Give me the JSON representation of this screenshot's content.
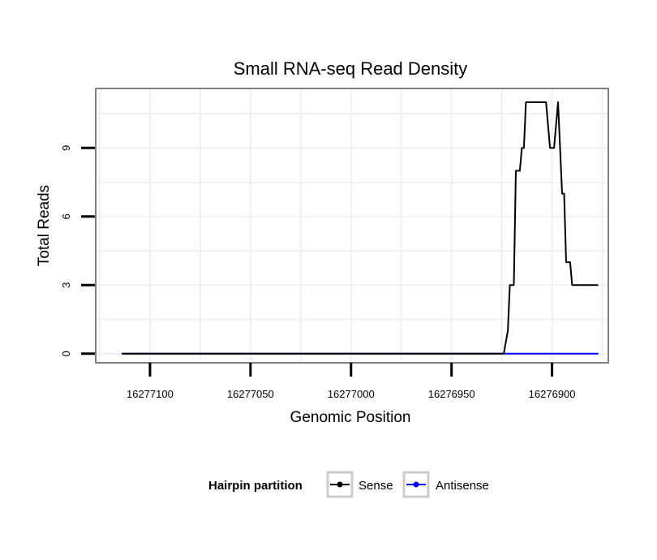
{
  "chart_data": {
    "type": "line",
    "title": "Small RNA-seq Read Density",
    "xlabel": "Genomic Position",
    "ylabel": "Total Reads",
    "x_reversed": true,
    "xlim": [
      16277127,
      16276872
    ],
    "ylim": [
      -0.4,
      11.6
    ],
    "xticks": [
      16277100,
      16277050,
      16277000,
      16276950,
      16276900
    ],
    "xtick_labels": [
      "16277100",
      "16277050",
      "16277000",
      "16276950",
      "16276900"
    ],
    "yticks": [
      0,
      3,
      6,
      9
    ],
    "ytick_labels": [
      "0",
      "3",
      "6",
      "9"
    ],
    "grid": true,
    "legend": {
      "title": "Hairpin partition",
      "placement": "bottom",
      "entries": [
        "Sense",
        "Antisense"
      ]
    },
    "series": [
      {
        "name": "Sense",
        "color": "#000000",
        "x": [
          16277114,
          16276924,
          16276922,
          16276921,
          16276919,
          16276918,
          16276916,
          16276915,
          16276914,
          16276913,
          16276910,
          16276909,
          16276908,
          16276906,
          16276904,
          16276904,
          16276903,
          16276901,
          16276899,
          16276897,
          16276895,
          16276894,
          16276893,
          16276891,
          16276890,
          16276888,
          16276877
        ],
        "values": [
          0,
          0,
          1,
          3,
          3,
          8,
          8,
          9,
          9,
          11,
          11,
          11,
          11,
          11,
          11,
          11,
          11,
          9,
          9,
          11,
          7,
          7,
          4,
          4,
          3,
          3,
          3
        ]
      },
      {
        "name": "Antisense",
        "color": "#0000ff",
        "x": [
          16277114,
          16276877
        ],
        "values": [
          0,
          0
        ]
      }
    ]
  }
}
